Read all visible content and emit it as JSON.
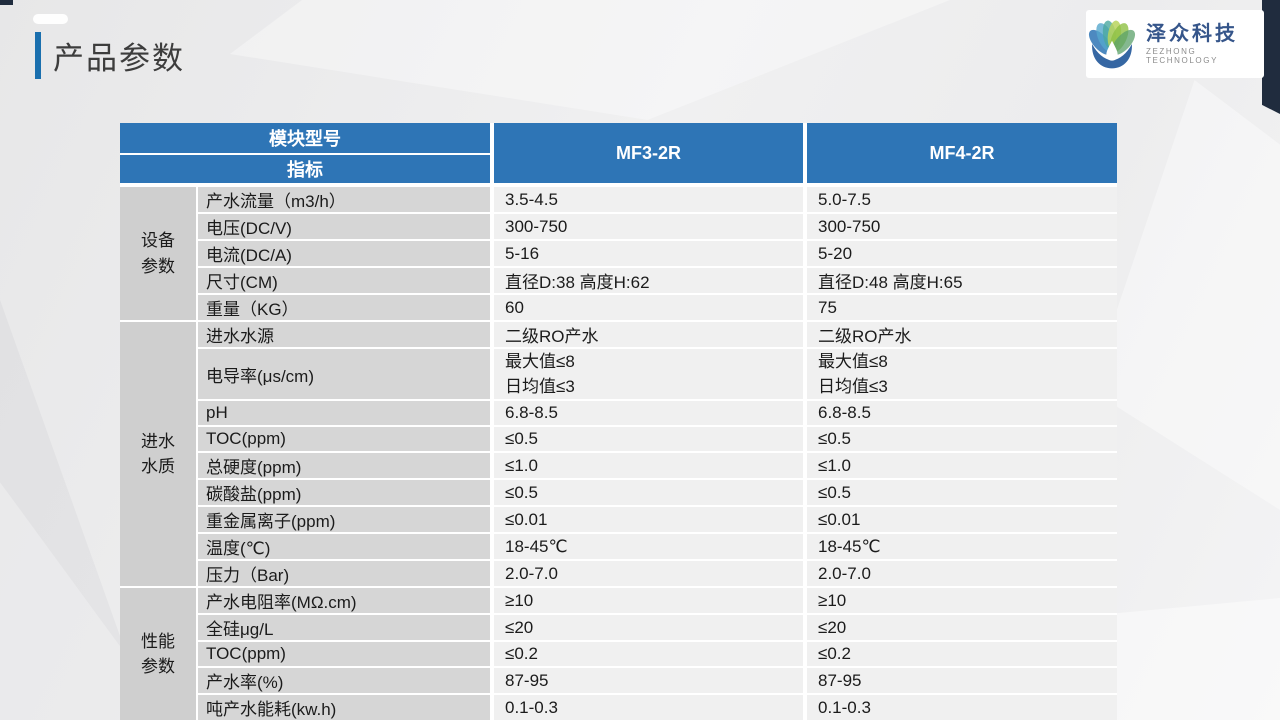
{
  "slide": {
    "title": "产品参数"
  },
  "colors": {
    "accent_blue": "#1a6fae",
    "header_blue": "#2e75b6",
    "navy": "#202c3e"
  },
  "logo": {
    "name_cn": "泽众科技",
    "name_en": "ZEZHONG TECHNOLOGY",
    "icon": "lotus-waterdrop-icon"
  },
  "table": {
    "header": {
      "corner_top": "模块型号",
      "corner_bottom": "指标",
      "columns": [
        "MF3-2R",
        "MF4-2R"
      ]
    },
    "sections": [
      {
        "group": "设备参数",
        "rows": [
          {
            "label": "产水流量（m3/h）",
            "mf3": "3.5-4.5",
            "mf4": "5.0-7.5"
          },
          {
            "label": "电压(DC/V)",
            "mf3": "300-750",
            "mf4": "300-750"
          },
          {
            "label": "电流(DC/A)",
            "mf3": "5-16",
            "mf4": "5-20"
          },
          {
            "label": "尺寸(CM)",
            "mf3": "直径D:38   高度H:62",
            "mf4": "直径D:48   高度H:65"
          },
          {
            "label": "重量（KG）",
            "mf3": "60",
            "mf4": "75"
          }
        ]
      },
      {
        "group": "进水水质",
        "rows": [
          {
            "label": "进水水源",
            "mf3": "二级RO产水",
            "mf4": "二级RO产水"
          },
          {
            "label": "电导率(μs/cm)",
            "mf3": [
              "最大值≤8",
              "日均值≤3"
            ],
            "mf4": [
              "最大值≤8",
              "日均值≤3"
            ]
          },
          {
            "label": "pH",
            "mf3": "6.8-8.5",
            "mf4": "6.8-8.5"
          },
          {
            "label": "TOC(ppm)",
            "mf3": "≤0.5",
            "mf4": "≤0.5"
          },
          {
            "label": "总硬度(ppm)",
            "mf3": "≤1.0",
            "mf4": "≤1.0"
          },
          {
            "label": "碳酸盐(ppm)",
            "mf3": "≤0.5",
            "mf4": "≤0.5"
          },
          {
            "label": "重金属离子(ppm)",
            "mf3": "≤0.01",
            "mf4": "≤0.01"
          },
          {
            "label": "温度(℃)",
            "mf3": "18-45℃",
            "mf4": "18-45℃"
          },
          {
            "label": "压力（Bar)",
            "mf3": "2.0-7.0",
            "mf4": "2.0-7.0"
          }
        ]
      },
      {
        "group": "性能参数",
        "rows": [
          {
            "label": "产水电阻率(MΩ.cm)",
            "mf3": "≥10",
            "mf4": "≥10"
          },
          {
            "label": "全硅μg/L",
            "mf3": "≤20",
            "mf4": "≤20"
          },
          {
            "label": "TOC(ppm)",
            "mf3": "≤0.2",
            "mf4": "≤0.2"
          },
          {
            "label": "产水率(%)",
            "mf3": "87-95",
            "mf4": "87-95"
          },
          {
            "label": "吨产水能耗(kw.h)",
            "mf3": "0.1-0.3",
            "mf4": "0.1-0.3"
          }
        ]
      }
    ]
  }
}
